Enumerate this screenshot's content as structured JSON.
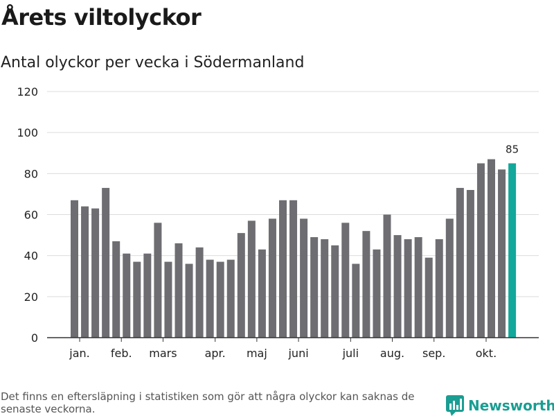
{
  "title": "Årets viltolyckor",
  "subtitle": "Antal olyckor per vecka i Södermanland",
  "footnote": "Det finns en eftersläpning i statistiken som gör att några olyckor kan saknas de senaste veckorna.",
  "brand": {
    "name": "Newsworthy",
    "icon": "bar-chart-logo-icon"
  },
  "colors": {
    "bar": "#6e6d72",
    "highlight": "#12a89b",
    "grid": "#dcdcdc",
    "axis": "#333333"
  },
  "chart_data": {
    "type": "bar",
    "title": "Årets viltolyckor",
    "subtitle": "Antal olyckor per vecka i Södermanland",
    "xlabel": "",
    "ylabel": "",
    "ylim": [
      0,
      120
    ],
    "yticks": [
      0,
      20,
      40,
      60,
      80,
      100,
      120
    ],
    "grid": true,
    "weeks": [
      1,
      2,
      3,
      4,
      5,
      6,
      7,
      8,
      9,
      10,
      11,
      12,
      13,
      14,
      15,
      16,
      17,
      18,
      19,
      20,
      21,
      22,
      23,
      24,
      25,
      26,
      27,
      28,
      29,
      30,
      31,
      32,
      33,
      34,
      35,
      36,
      37,
      38,
      39,
      40,
      41,
      42,
      43
    ],
    "values": [
      67,
      64,
      63,
      73,
      47,
      41,
      37,
      41,
      56,
      37,
      46,
      36,
      44,
      38,
      37,
      38,
      51,
      57,
      43,
      58,
      67,
      67,
      58,
      49,
      48,
      45,
      56,
      36,
      52,
      43,
      60,
      50,
      48,
      49,
      39,
      48,
      58,
      73,
      72,
      85,
      87,
      82,
      85
    ],
    "month_labels": [
      {
        "label": "jan.",
        "week": 1.5
      },
      {
        "label": "feb.",
        "week": 5.5
      },
      {
        "label": "mars",
        "week": 9.5
      },
      {
        "label": "apr.",
        "week": 14.5
      },
      {
        "label": "maj",
        "week": 18.5
      },
      {
        "label": "juni",
        "week": 22.5
      },
      {
        "label": "juli",
        "week": 27.5
      },
      {
        "label": "aug.",
        "week": 31.5
      },
      {
        "label": "sep.",
        "week": 35.5
      },
      {
        "label": "okt.",
        "week": 40.5
      }
    ],
    "highlight_index": 42,
    "highlight_label": "85"
  }
}
